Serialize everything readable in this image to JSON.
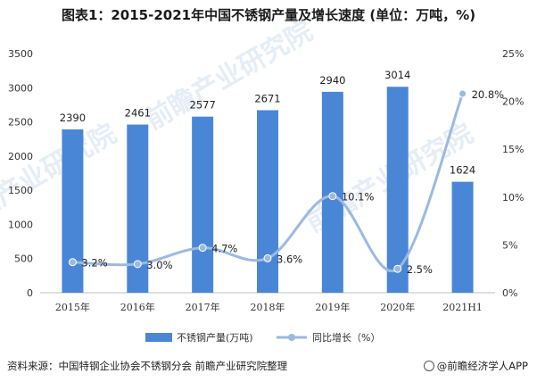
{
  "title": "图表1：2015-2021年中国不锈钢产量及增长速度 (单位：万吨，%)",
  "source": "资料来源：中国特钢企业协会不锈钢分会 前瞻产业研究院整理",
  "brand": "@前瞻经济学人APP",
  "watermark": "前瞻产业研究院",
  "chart_data": {
    "type": "bar",
    "categories": [
      "2015年",
      "2016年",
      "2017年",
      "2018年",
      "2019年",
      "2020年",
      "2021H1"
    ],
    "series": [
      {
        "name": "不锈钢产量(万吨)",
        "type": "bar",
        "axis": "left",
        "values": [
          2390,
          2461,
          2577,
          2671,
          2940,
          3014,
          1624
        ],
        "labels": [
          "2390",
          "2461",
          "2577",
          "2671",
          "2940",
          "3014",
          "1624"
        ],
        "color": "#4a86d6"
      },
      {
        "name": "同比增长（%）",
        "type": "line",
        "smooth": true,
        "axis": "right",
        "values": [
          3.2,
          3.0,
          4.7,
          3.6,
          10.1,
          2.5,
          20.8
        ],
        "labels": [
          "3.2%",
          "3.0%",
          "4.7%",
          "3.6%",
          "10.1%",
          "2.5%",
          "20.8%"
        ],
        "color": "#9cb9e0"
      }
    ],
    "ylim_left": [
      0,
      3500
    ],
    "yticks_left": [
      "0",
      "500",
      "1000",
      "1500",
      "2000",
      "2500",
      "3000",
      "3500"
    ],
    "ylim_right": [
      0,
      25
    ],
    "yticks_right": [
      "0%",
      "5%",
      "10%",
      "15%",
      "20%",
      "25%"
    ],
    "grid": false,
    "legend": "bottom"
  }
}
